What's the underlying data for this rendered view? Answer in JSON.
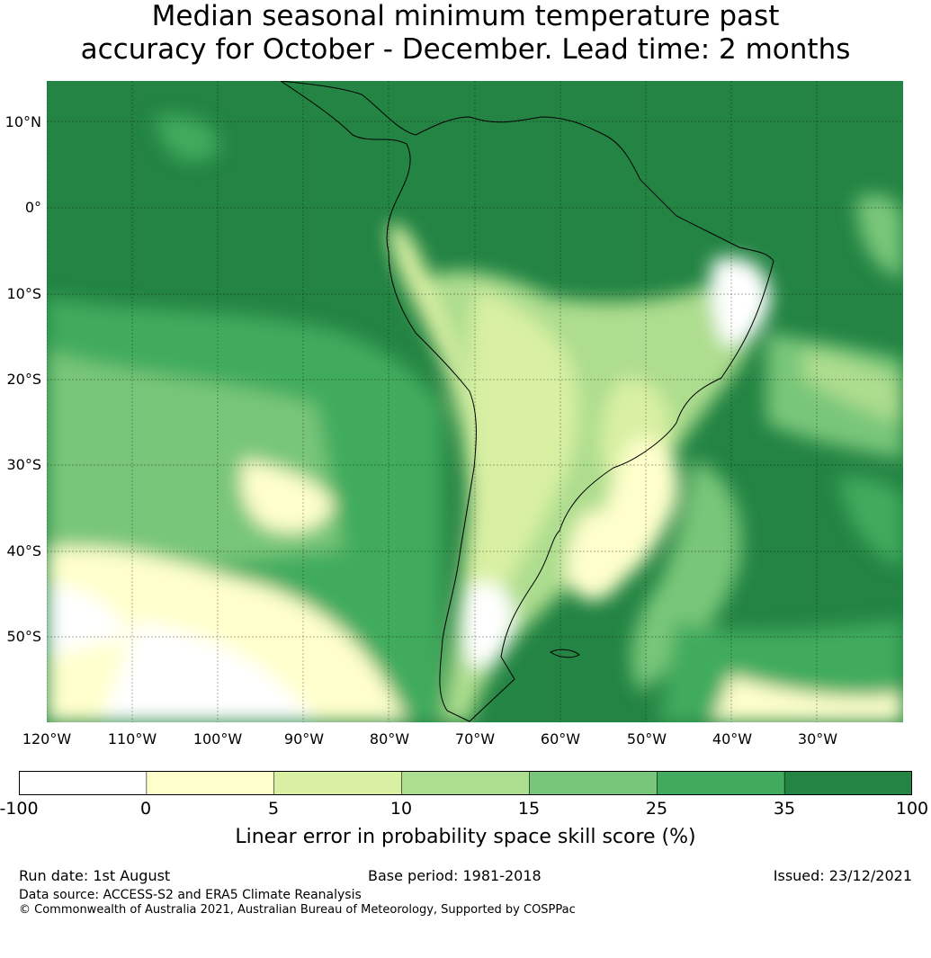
{
  "title_line1": "Median seasonal minimum temperature past",
  "title_line2": "accuracy for October - December. Lead time: 2 months",
  "map": {
    "lat_labels": [
      "10°N",
      "0°",
      "10°S",
      "20°S",
      "30°S",
      "40°S",
      "50°S"
    ],
    "lon_labels": [
      "120°W",
      "110°W",
      "100°W",
      "90°W",
      "80°W",
      "70°W",
      "60°W",
      "50°W",
      "40°W",
      "30°W"
    ]
  },
  "colorbar": {
    "ticks": [
      "-100",
      "0",
      "5",
      "10",
      "15",
      "25",
      "35",
      "100"
    ],
    "colors": [
      "#ffffff",
      "#ffffcc",
      "#d9f0a3",
      "#addd8e",
      "#78c679",
      "#41ab5d",
      "#238443"
    ],
    "label": "Linear error in probability space skill score (%)"
  },
  "footer": {
    "run_date": "Run date: 1st August",
    "base_period": "Base period: 1981-2018",
    "issued": "Issued: 23/12/2021",
    "data_source": "Data source: ACCESS-S2 and ERA5 Climate Reanalysis",
    "copyright": "© Commonwealth of Australia 2021, Australian Bureau of Meteorology, Supported by COSPPac"
  }
}
